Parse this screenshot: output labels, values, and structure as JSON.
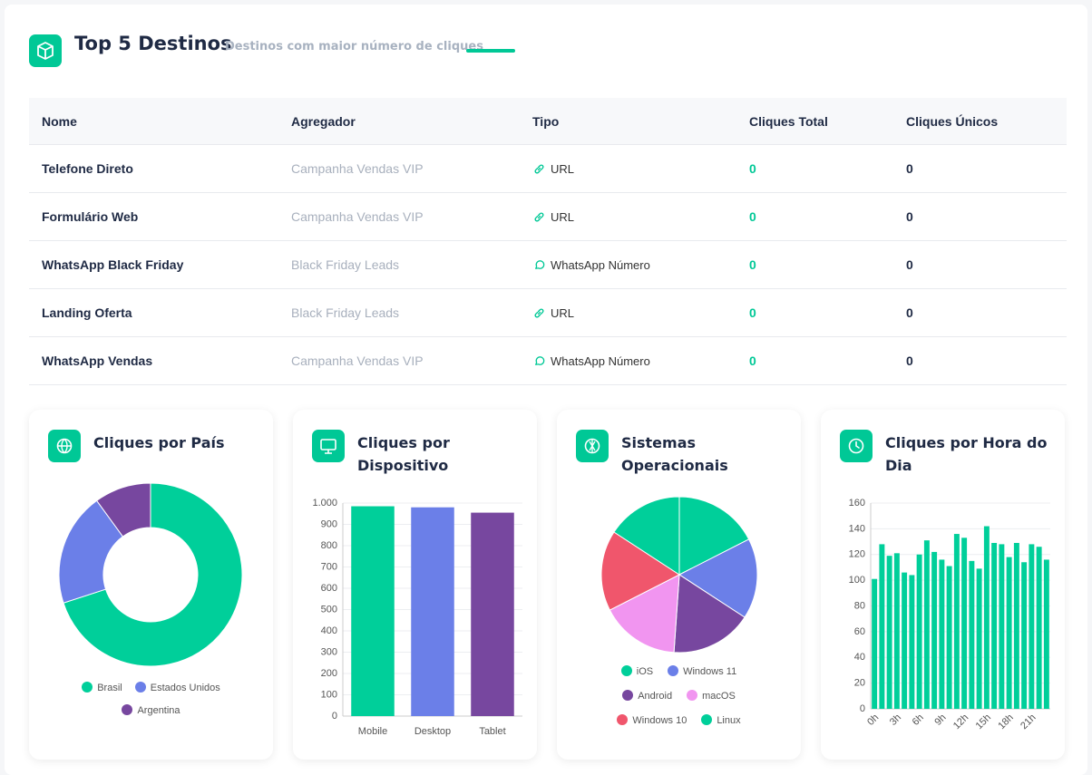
{
  "header": {
    "title": "Top 5 Destinos",
    "subtitle": "Destinos com maior número de cliques"
  },
  "table": {
    "columns": [
      "Nome",
      "Agregador",
      "Tipo",
      "Cliques Total",
      "Cliques Únicos"
    ],
    "rows": [
      [
        "Telefone Direto",
        "Campanha Vendas VIP",
        "URL",
        0,
        0
      ],
      [
        "Formulário Web",
        "Campanha Vendas VIP",
        "URL",
        0,
        0
      ],
      [
        "WhatsApp Black Friday",
        "Black Friday Leads",
        "WhatsApp Número",
        0,
        0
      ],
      [
        "Landing Oferta",
        "Black Friday Leads",
        "URL",
        0,
        0
      ],
      [
        "WhatsApp Vendas",
        "Campanha Vendas VIP",
        "WhatsApp Número",
        0,
        0
      ]
    ]
  },
  "chart_data": [
    {
      "type": "donut",
      "title": "Cliques por País",
      "categories": [
        "Brasil",
        "Estados Unidos",
        "Argentina"
      ],
      "values": [
        70,
        20,
        10
      ],
      "colors": [
        "#00cf9a",
        "#6b7fe8",
        "#77479f"
      ],
      "legend": "bottom"
    },
    {
      "type": "bar",
      "title": "Cliques por Dispositivo",
      "categories": [
        "Mobile",
        "Desktop",
        "Tablet"
      ],
      "values": [
        985,
        980,
        955
      ],
      "colors": [
        "#00cf9a",
        "#6b7fe8",
        "#77479f"
      ],
      "ylim": [
        0,
        1000
      ],
      "yticks": [
        0,
        100,
        200,
        300,
        400,
        500,
        600,
        700,
        800,
        900,
        {
          "value": 1000,
          "label": "1.000"
        }
      ],
      "grid": true
    },
    {
      "type": "pie",
      "title": "Sistemas Operacionais",
      "categories": [
        "iOS",
        "Windows 11",
        "Android",
        "macOS",
        "Windows 10",
        "Linux"
      ],
      "values": [
        17.5,
        16.7,
        16.9,
        16.4,
        16.7,
        15.8
      ],
      "colors": [
        "#00cf9a",
        "#6b7fe8",
        "#77479f",
        "#f195f0",
        "#f0566c",
        "#00cf9a"
      ],
      "legend": "bottom"
    },
    {
      "type": "bar",
      "title": "Cliques por Hora do Dia",
      "categories": [
        "0h",
        null,
        null,
        "3h",
        null,
        null,
        "6h",
        null,
        null,
        "9h",
        null,
        null,
        "12h",
        null,
        null,
        "15h",
        null,
        null,
        "18h",
        null,
        null,
        "21h",
        null,
        null
      ],
      "values": [
        101,
        128,
        119,
        121,
        106,
        104,
        120,
        131,
        122,
        116,
        111,
        136,
        133,
        115,
        109,
        142,
        129,
        128,
        118,
        129,
        114,
        128,
        126,
        116
      ],
      "color": "#00cf9a",
      "ylim": [
        0,
        160
      ],
      "yticks": [
        0,
        20,
        40,
        60,
        80,
        100,
        120,
        140,
        160
      ],
      "grid": true
    }
  ]
}
